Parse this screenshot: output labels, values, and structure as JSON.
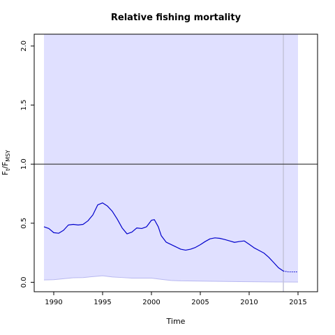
{
  "chart_data": {
    "type": "line",
    "title": "Relative fishing mortality",
    "xlabel": "Time",
    "ylabel": {
      "main": "F",
      "sub1": "t",
      "slash": "/F",
      "sub2": "MSY"
    },
    "xlim": [
      1988,
      2017
    ],
    "ylim": [
      -0.08,
      2.1
    ],
    "x_ticks": [
      1990,
      1995,
      2000,
      2005,
      2010,
      2015
    ],
    "x_tick_labels": [
      "1990",
      "1995",
      "2000",
      "2005",
      "2010",
      "2015"
    ],
    "y_ticks": [
      0.0,
      0.5,
      1.0,
      1.5,
      2.0
    ],
    "y_tick_labels": [
      "0.0",
      "0.5",
      "1.0",
      "1.5",
      "2.0"
    ],
    "reference_line": 1.0,
    "vertical_line": 2013.5,
    "ci_x_range": [
      1989.0,
      2015.0
    ],
    "ci_upper": 2.1,
    "ci_lower": [
      [
        1989.0,
        0.02
      ],
      [
        1990.0,
        0.022
      ],
      [
        1991.0,
        0.03
      ],
      [
        1992.0,
        0.038
      ],
      [
        1993.0,
        0.04
      ],
      [
        1994.0,
        0.048
      ],
      [
        1995.0,
        0.055
      ],
      [
        1996.0,
        0.045
      ],
      [
        1997.0,
        0.04
      ],
      [
        1998.0,
        0.035
      ],
      [
        1999.0,
        0.035
      ],
      [
        2000.0,
        0.035
      ],
      [
        2001.0,
        0.025
      ],
      [
        2002.0,
        0.015
      ],
      [
        2003.0,
        0.012
      ],
      [
        2005.0,
        0.01
      ],
      [
        2007.0,
        0.008
      ],
      [
        2009.0,
        0.006
      ],
      [
        2011.0,
        0.004
      ],
      [
        2013.0,
        0.003
      ],
      [
        2015.0,
        0.002
      ]
    ],
    "series": [
      {
        "color": "#0000cc",
        "points": [
          [
            1989.0,
            0.47
          ],
          [
            1989.5,
            0.455
          ],
          [
            1990.0,
            0.42
          ],
          [
            1990.5,
            0.415
          ],
          [
            1991.0,
            0.44
          ],
          [
            1991.5,
            0.485
          ],
          [
            1992.0,
            0.49
          ],
          [
            1992.5,
            0.485
          ],
          [
            1993.0,
            0.49
          ],
          [
            1993.5,
            0.52
          ],
          [
            1994.0,
            0.57
          ],
          [
            1994.5,
            0.655
          ],
          [
            1995.0,
            0.672
          ],
          [
            1995.5,
            0.645
          ],
          [
            1996.0,
            0.6
          ],
          [
            1996.5,
            0.535
          ],
          [
            1997.0,
            0.46
          ],
          [
            1997.5,
            0.41
          ],
          [
            1998.0,
            0.425
          ],
          [
            1998.5,
            0.46
          ],
          [
            1999.0,
            0.455
          ],
          [
            1999.5,
            0.47
          ],
          [
            2000.0,
            0.525
          ],
          [
            2000.3,
            0.53
          ],
          [
            2000.7,
            0.47
          ],
          [
            2001.0,
            0.395
          ],
          [
            2001.5,
            0.34
          ],
          [
            2002.0,
            0.32
          ],
          [
            2002.5,
            0.3
          ],
          [
            2003.0,
            0.28
          ],
          [
            2003.5,
            0.272
          ],
          [
            2004.0,
            0.28
          ],
          [
            2004.5,
            0.295
          ],
          [
            2005.0,
            0.318
          ],
          [
            2005.5,
            0.345
          ],
          [
            2006.0,
            0.368
          ],
          [
            2006.5,
            0.376
          ],
          [
            2007.0,
            0.372
          ],
          [
            2007.5,
            0.362
          ],
          [
            2008.0,
            0.35
          ],
          [
            2008.5,
            0.338
          ],
          [
            2009.0,
            0.345
          ],
          [
            2009.5,
            0.35
          ],
          [
            2010.0,
            0.322
          ],
          [
            2010.5,
            0.292
          ],
          [
            2011.0,
            0.27
          ],
          [
            2011.5,
            0.248
          ],
          [
            2012.0,
            0.212
          ],
          [
            2012.5,
            0.168
          ],
          [
            2013.0,
            0.123
          ],
          [
            2013.5,
            0.095
          ]
        ],
        "projection": [
          [
            2013.5,
            0.095
          ],
          [
            2014.0,
            0.088
          ],
          [
            2015.0,
            0.088
          ]
        ]
      }
    ],
    "colors": {
      "ci_fill": "#e0e0ff",
      "ci_edge": "#b8b8f0",
      "series": "#0000cc",
      "ref_line": "#333333",
      "vline": "#c4c4d8",
      "axis": "#000000"
    },
    "grid": false
  }
}
